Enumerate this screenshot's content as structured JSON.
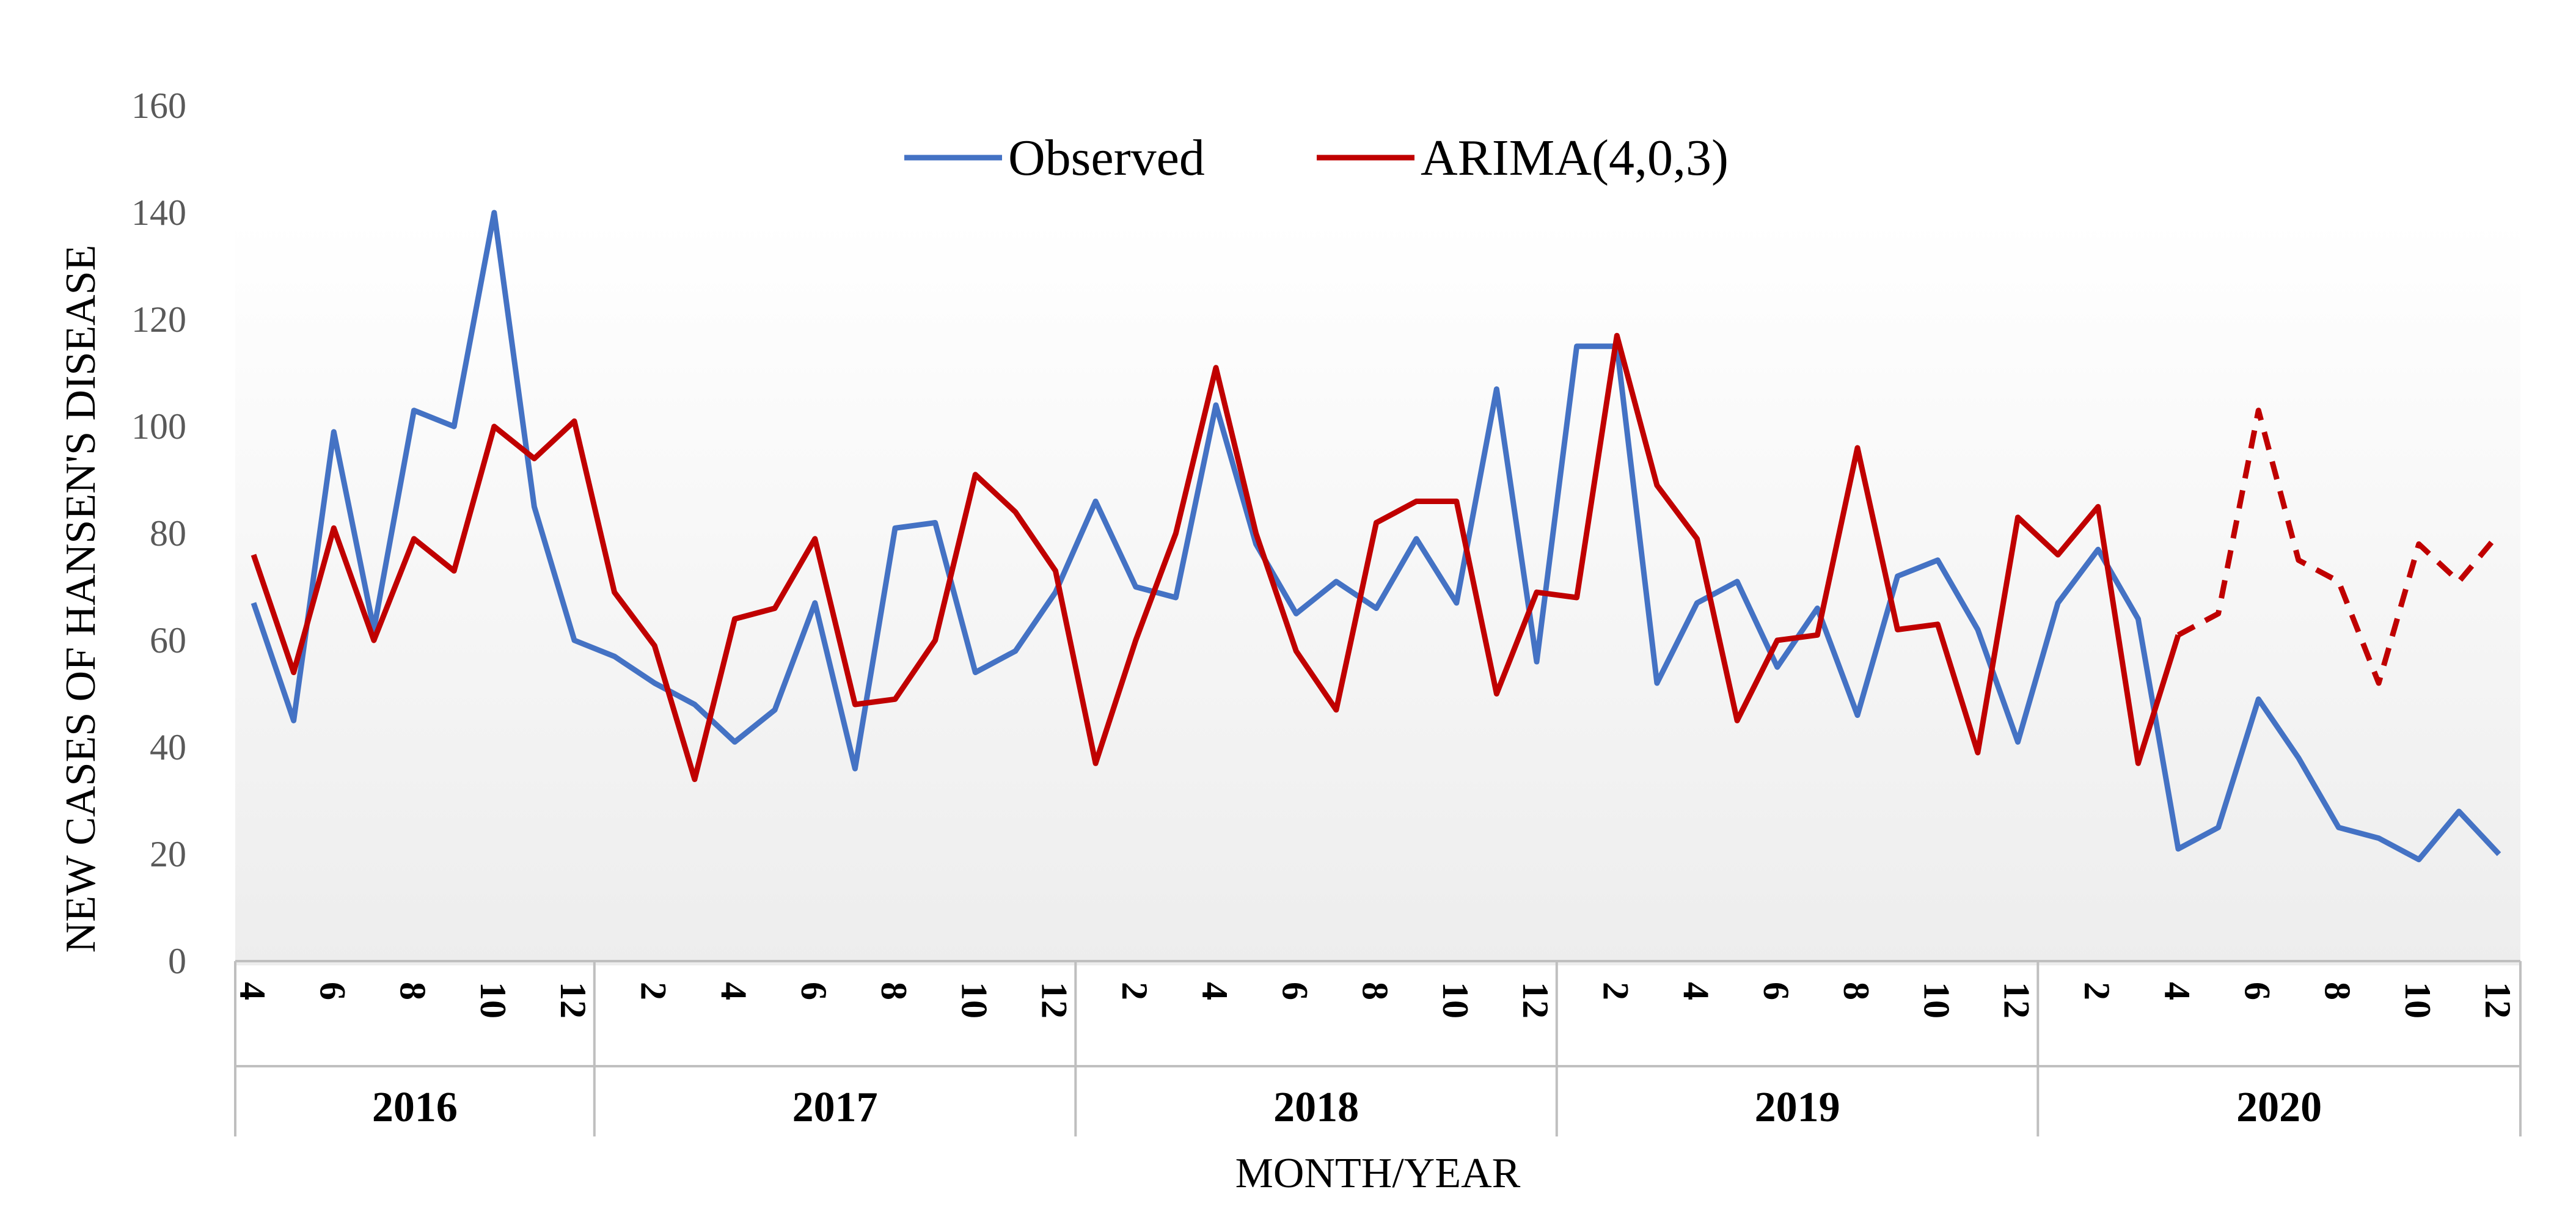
{
  "chart_data": {
    "type": "line",
    "title": "",
    "xlabel": "MONTH/YEAR",
    "ylabel": "NEW CASES OF HANSEN'S DISEASE",
    "ylim": [
      0,
      160
    ],
    "yticks": [
      0,
      20,
      40,
      60,
      80,
      100,
      120,
      140,
      160
    ],
    "grid": false,
    "legend_position": "top-center",
    "x_tick_labels": [
      "4",
      "",
      "6",
      "",
      "8",
      "",
      "10",
      "",
      "12",
      "",
      "2",
      "",
      "4",
      "",
      "6",
      "",
      "8",
      "",
      "10",
      "",
      "12",
      "",
      "2",
      "",
      "4",
      "",
      "6",
      "",
      "8",
      "",
      "10",
      "",
      "12",
      "",
      "2",
      "",
      "4",
      "",
      "6",
      "",
      "8",
      "",
      "10",
      "",
      "12",
      "",
      "2",
      "",
      "4",
      "",
      "6",
      "",
      "8",
      "",
      "10",
      "",
      "12"
    ],
    "years": [
      {
        "label": "2016",
        "start": 0,
        "end": 8
      },
      {
        "label": "2017",
        "start": 9,
        "end": 20
      },
      {
        "label": "2018",
        "start": 21,
        "end": 32
      },
      {
        "label": "2019",
        "start": 33,
        "end": 44
      },
      {
        "label": "2020",
        "start": 45,
        "end": 56
      }
    ],
    "series": [
      {
        "name": "Observed",
        "color": "#4472C4",
        "style": "solid",
        "values": [
          67,
          45,
          99,
          62,
          103,
          100,
          140,
          85,
          60,
          57,
          52,
          48,
          41,
          47,
          67,
          36,
          81,
          82,
          54,
          58,
          69,
          86,
          70,
          68,
          104,
          78,
          65,
          71,
          66,
          79,
          67,
          107,
          56,
          115,
          115,
          52,
          67,
          71,
          55,
          66,
          46,
          72,
          75,
          62,
          41,
          67,
          77,
          64,
          21,
          25,
          49,
          38,
          25,
          23,
          19,
          28,
          20
        ]
      },
      {
        "name": "ARIMA(4,0,3)",
        "color": "#C00000",
        "style": "solid",
        "fitted_end_index": 48,
        "forecast_style": "dashed",
        "values": [
          76,
          54,
          81,
          60,
          79,
          73,
          100,
          94,
          101,
          69,
          59,
          34,
          64,
          66,
          79,
          48,
          49,
          60,
          91,
          84,
          73,
          37,
          60,
          80,
          111,
          80,
          58,
          47,
          82,
          86,
          86,
          50,
          69,
          68,
          117,
          89,
          79,
          45,
          60,
          61,
          96,
          62,
          63,
          39,
          83,
          76,
          85,
          37,
          61,
          65,
          103,
          75,
          71,
          52,
          78,
          71,
          80
        ]
      }
    ]
  }
}
